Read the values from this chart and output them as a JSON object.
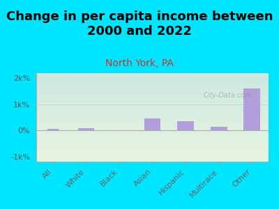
{
  "title": "Change in per capita income between\n2000 and 2022",
  "subtitle": "North York, PA",
  "categories": [
    "All",
    "White",
    "Black",
    "Asian",
    "Hispanic",
    "Multirace",
    "Other"
  ],
  "values": [
    50,
    100,
    -30,
    450,
    350,
    150,
    1600
  ],
  "bar_color": "#b39ddb",
  "background_outer": "#00e5ff",
  "background_inner_top": "#cde8e0",
  "background_inner_bottom": "#e8f5e0",
  "title_fontsize": 13,
  "subtitle_color": "#c0392b",
  "subtitle_fontsize": 10,
  "ylim": [
    -1200,
    2200
  ],
  "yticks": [
    -1000,
    0,
    1000,
    2000
  ],
  "ytick_labels": [
    "-1k%",
    "0%",
    "1k%",
    "2k%"
  ],
  "watermark": "City-Data.com",
  "tick_color": "#555555",
  "axis_label_color": "#666666"
}
